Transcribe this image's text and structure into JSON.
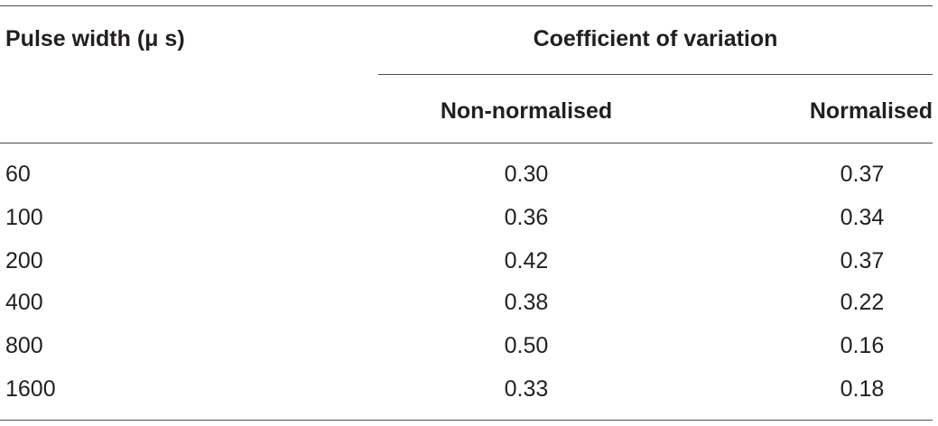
{
  "table": {
    "headers": {
      "pulse_width": "Pulse width (μ s)",
      "coefficient": "Coefficient of variation",
      "non_normalised": "Non-normalised",
      "normalised": "Normalised"
    },
    "rows": [
      {
        "pulse_width": "60",
        "non_normalised": "0.30",
        "normalised": "0.37"
      },
      {
        "pulse_width": "100",
        "non_normalised": "0.36",
        "normalised": "0.34"
      },
      {
        "pulse_width": "200",
        "non_normalised": "0.42",
        "normalised": "0.37"
      },
      {
        "pulse_width": "400",
        "non_normalised": "0.38",
        "normalised": "0.22"
      },
      {
        "pulse_width": "800",
        "non_normalised": "0.50",
        "normalised": "0.16"
      },
      {
        "pulse_width": "1600",
        "non_normalised": "0.33",
        "normalised": "0.18"
      }
    ]
  }
}
